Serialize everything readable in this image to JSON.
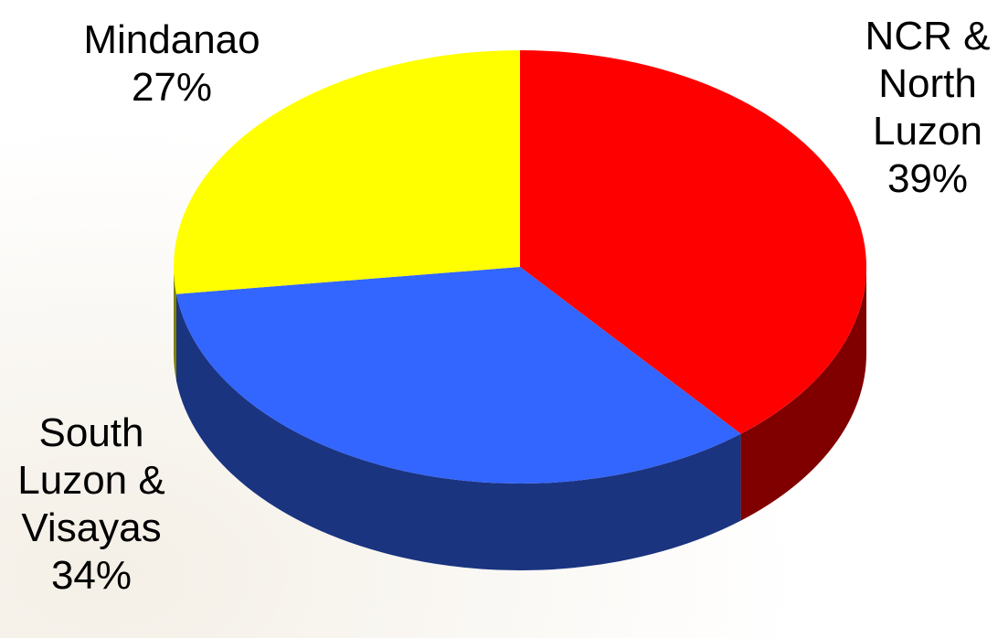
{
  "chart_data": {
    "type": "pie",
    "style": "3d",
    "unit": "%",
    "slices": [
      {
        "name": "NCR & North Luzon",
        "value": 39,
        "label_lines": [
          "NCR &",
          "North",
          "Luzon",
          "39%"
        ],
        "color": "#ff0000",
        "side_color": "#800000"
      },
      {
        "name": "South Luzon & Visayas",
        "value": 34,
        "label_lines": [
          "South",
          "Luzon &",
          "Visayas",
          "34%"
        ],
        "color": "#3366ff",
        "side_color": "#1b3480"
      },
      {
        "name": "Mindanao",
        "value": 27,
        "label_lines": [
          "Mindanao",
          "27%"
        ],
        "color": "#ffff00",
        "side_color": "#808000"
      }
    ],
    "legend": "none",
    "data_labels": "outside"
  }
}
